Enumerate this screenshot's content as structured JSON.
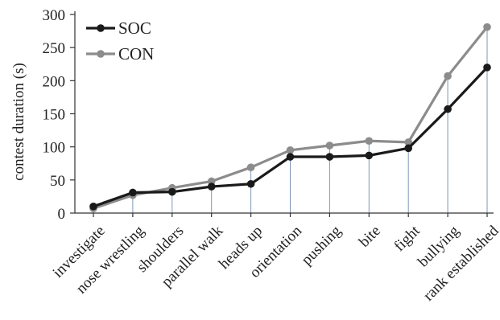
{
  "chart_data": {
    "type": "line",
    "title": "",
    "xlabel": "",
    "ylabel": "contest duration (s)",
    "ylim": [
      0,
      300
    ],
    "yticks": [
      "0",
      "50",
      "100",
      "150",
      "200",
      "250",
      "300"
    ],
    "categories": [
      "investigate",
      "nose wrestling",
      "shoulders",
      "parallel walk",
      "heads up",
      "orientation",
      "pushing",
      "bite",
      "fight",
      "bullying",
      "rank established"
    ],
    "series": [
      {
        "name": "SOC",
        "color": "#1a1a1a",
        "values": [
          10,
          31,
          32,
          40,
          44,
          85,
          85,
          87,
          98,
          157,
          220
        ]
      },
      {
        "name": "CON",
        "color": "#8c8c8c",
        "values": [
          7,
          27,
          38,
          48,
          69,
          95,
          102,
          109,
          107,
          207,
          281
        ]
      }
    ],
    "legend_position": "top-left",
    "grid": false
  }
}
